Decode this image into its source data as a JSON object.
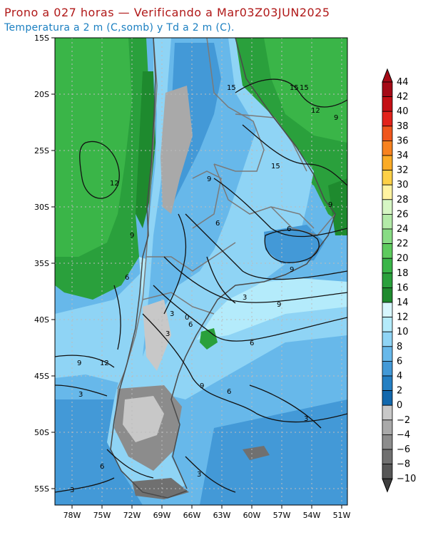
{
  "header": {
    "title": "Prono a 027 horas — Verificando a Mar03Z03JUN2025",
    "subtitle": "Temperatura a 2 m (C,somb) y Td a 2 m (C)."
  },
  "map": {
    "lat_labels": [
      "15S",
      "20S",
      "25S",
      "30S",
      "35S",
      "40S",
      "45S",
      "50S",
      "55S"
    ],
    "lon_labels": [
      "78W",
      "75W",
      "72W",
      "69W",
      "66W",
      "63W",
      "60W",
      "57W",
      "54W",
      "51W"
    ],
    "contour_labels": [
      "15",
      "15",
      "15",
      "12",
      "9",
      "15",
      "9",
      "6",
      "12",
      "9",
      "6",
      "9",
      "6",
      "3",
      "9",
      "3",
      "0",
      "6",
      "3",
      "12",
      "9",
      "9",
      "6",
      "6",
      "9",
      "3",
      "3",
      "6",
      "3",
      "3"
    ]
  },
  "colorbar": {
    "labels": [
      "44",
      "42",
      "40",
      "38",
      "36",
      "34",
      "32",
      "30",
      "28",
      "26",
      "24",
      "22",
      "20",
      "18",
      "16",
      "14",
      "12",
      "10",
      "8",
      "6",
      "4",
      "2",
      "0",
      "−2",
      "−4",
      "−6",
      "−8",
      "−10"
    ],
    "colors": [
      "#a50a16",
      "#c40f14",
      "#e2231b",
      "#f0561c",
      "#f7821f",
      "#fbab26",
      "#fdd047",
      "#fff3a1",
      "#d6f6c4",
      "#b3eaa8",
      "#88dc84",
      "#5ecb5e",
      "#3ab548",
      "#2aa03c",
      "#1e8a2e",
      "#d7f6fe",
      "#b4ebfb",
      "#8fd4f5",
      "#67b8ea",
      "#4399d7",
      "#247fc3",
      "#1268ad",
      "#c8c8c8",
      "#a9a9a9",
      "#8c8c8c",
      "#707070",
      "#565656"
    ]
  }
}
